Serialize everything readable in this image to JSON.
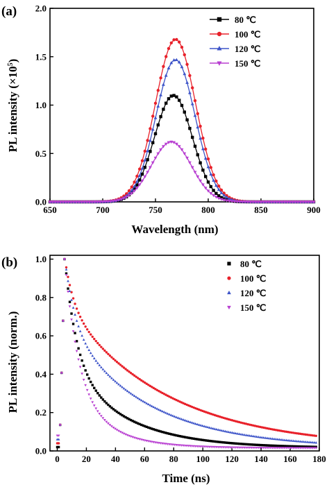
{
  "figure": {
    "series_colors": [
      "#000000",
      "#e8212a",
      "#3c53c8",
      "#b83fd1"
    ],
    "series_markers": [
      "square",
      "circle",
      "triangle-up",
      "triangle-down"
    ]
  },
  "chart_data": [
    {
      "type": "line",
      "panel_label": "(a)",
      "xlabel": "Wavelength (nm)",
      "ylabel_main": "PL intensity (×10",
      "ylabel_sup": "5",
      "ylabel_end": ")",
      "xlim": [
        650,
        900
      ],
      "ylim": [
        0,
        2.0
      ],
      "x_ticks": [
        650,
        700,
        750,
        800,
        850,
        900
      ],
      "y_ticks": [
        0.0,
        0.5,
        1.0,
        1.5,
        2.0
      ],
      "x_tick_labels": [
        "650",
        "700",
        "750",
        "800",
        "850",
        "900"
      ],
      "y_tick_labels": [
        "0.0",
        "0.5",
        "1.0",
        "1.5",
        "2.0"
      ],
      "legend_position": "top-right",
      "series": [
        {
          "name": "80 ℃",
          "peak_x": 767,
          "peak_y": 1.1,
          "width_sigma": 18
        },
        {
          "name": "100 ℃",
          "peak_x": 769,
          "peak_y": 1.68,
          "width_sigma": 19
        },
        {
          "name": "120 ℃",
          "peak_x": 769,
          "peak_y": 1.47,
          "width_sigma": 18.5
        },
        {
          "name": "150 ℃",
          "peak_x": 765,
          "peak_y": 0.62,
          "width_sigma": 19
        }
      ],
      "x_sampled": [
        650,
        660,
        670,
        680,
        690,
        700,
        710,
        720,
        730,
        740,
        750,
        760,
        765,
        770,
        780,
        790,
        800,
        810,
        820,
        830,
        840,
        850,
        860,
        870,
        880,
        890,
        900
      ]
    },
    {
      "type": "scatter",
      "panel_label": "(b)",
      "xlabel": "Time (ns)",
      "ylabel": "PL intensity (norm.)",
      "xlim": [
        -5,
        180
      ],
      "ylim": [
        0,
        1.02
      ],
      "x_ticks": [
        0,
        20,
        40,
        60,
        80,
        100,
        120,
        140,
        160,
        180
      ],
      "y_ticks": [
        0.0,
        0.2,
        0.4,
        0.6,
        0.8,
        1.0
      ],
      "x_tick_labels": [
        "0",
        "20",
        "40",
        "60",
        "80",
        "100",
        "120",
        "140",
        "160",
        "180"
      ],
      "y_tick_labels": [
        "0.0",
        "0.2",
        "0.4",
        "0.6",
        "0.8",
        "1.0"
      ],
      "legend_position": "top-right",
      "series": [
        {
          "name": "80 ℃",
          "peak_t": 5,
          "a1": 0.55,
          "tau1": 8,
          "a2": 0.45,
          "tau2": 40
        },
        {
          "name": "100 ℃",
          "peak_t": 5,
          "a1": 0.25,
          "tau1": 6,
          "a2": 0.75,
          "tau2": 70
        },
        {
          "name": "120 ℃",
          "peak_t": 5,
          "a1": 0.35,
          "tau1": 7,
          "a2": 0.65,
          "tau2": 55
        },
        {
          "name": "150 ℃",
          "peak_t": 5,
          "a1": 0.65,
          "tau1": 9,
          "a2": 0.35,
          "tau2": 25
        }
      ],
      "t_sampled": [
        0,
        2,
        4,
        5,
        6,
        8,
        10,
        15,
        20,
        30,
        40,
        50,
        60,
        80,
        100,
        120,
        140,
        160,
        180
      ]
    }
  ]
}
